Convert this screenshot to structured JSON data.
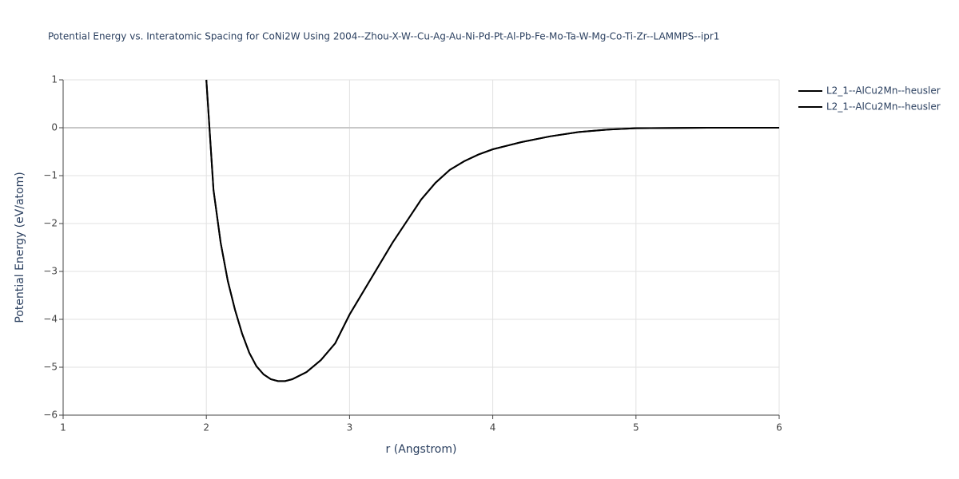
{
  "chart_data": {
    "type": "line",
    "title": "Potential Energy vs. Interatomic Spacing for CoNi2W Using 2004--Zhou-X-W--Cu-Ag-Au-Ni-Pd-Pt-Al-Pb-Fe-Mo-Ta-W-Mg-Co-Ti-Zr--LAMMPS--ipr1",
    "x_label": "r (Angstrom)",
    "y_label": "Potential Energy (eV/atom)",
    "x": [
      2.0,
      2.05,
      2.1,
      2.15,
      2.2,
      2.25,
      2.3,
      2.35,
      2.4,
      2.45,
      2.5,
      2.55,
      2.6,
      2.7,
      2.8,
      2.9,
      3.0,
      3.1,
      3.2,
      3.3,
      3.4,
      3.5,
      3.6,
      3.7,
      3.8,
      3.9,
      4.0,
      4.2,
      4.4,
      4.6,
      4.8,
      5.0,
      5.5,
      6.0
    ],
    "series": [
      {
        "name": "L2_1--AlCu2Mn--heusler",
        "color": "#000000",
        "values": [
          1.0,
          -1.3,
          -2.4,
          -3.2,
          -3.8,
          -4.3,
          -4.7,
          -4.98,
          -5.15,
          -5.25,
          -5.29,
          -5.29,
          -5.25,
          -5.1,
          -4.85,
          -4.5,
          -3.9,
          -3.4,
          -2.9,
          -2.4,
          -1.95,
          -1.5,
          -1.15,
          -0.88,
          -0.7,
          -0.56,
          -0.45,
          -0.3,
          -0.18,
          -0.09,
          -0.04,
          -0.01,
          0,
          0
        ]
      },
      {
        "name": "L2_1--AlCu2Mn--heusler",
        "color": "#000000",
        "values": [
          1.0,
          -1.3,
          -2.4,
          -3.2,
          -3.8,
          -4.3,
          -4.7,
          -4.98,
          -5.15,
          -5.25,
          -5.29,
          -5.29,
          -5.25,
          -5.1,
          -4.85,
          -4.5,
          -3.9,
          -3.4,
          -2.9,
          -2.4,
          -1.95,
          -1.5,
          -1.15,
          -0.88,
          -0.7,
          -0.56,
          -0.45,
          -0.3,
          -0.18,
          -0.09,
          -0.04,
          -0.01,
          0,
          0
        ]
      }
    ],
    "xlim": [
      1,
      6
    ],
    "xticks": [
      1,
      2,
      3,
      4,
      5,
      6
    ],
    "ylim": [
      -6,
      1
    ],
    "yticks": [
      {
        "value": -6,
        "label": "−6"
      },
      {
        "value": -5,
        "label": "−5"
      },
      {
        "value": -4,
        "label": "−4"
      },
      {
        "value": -3,
        "label": "−3"
      },
      {
        "value": -2,
        "label": "−2"
      },
      {
        "value": -1,
        "label": "−1"
      },
      0,
      1
    ],
    "grid": true,
    "legend": "top-right"
  }
}
